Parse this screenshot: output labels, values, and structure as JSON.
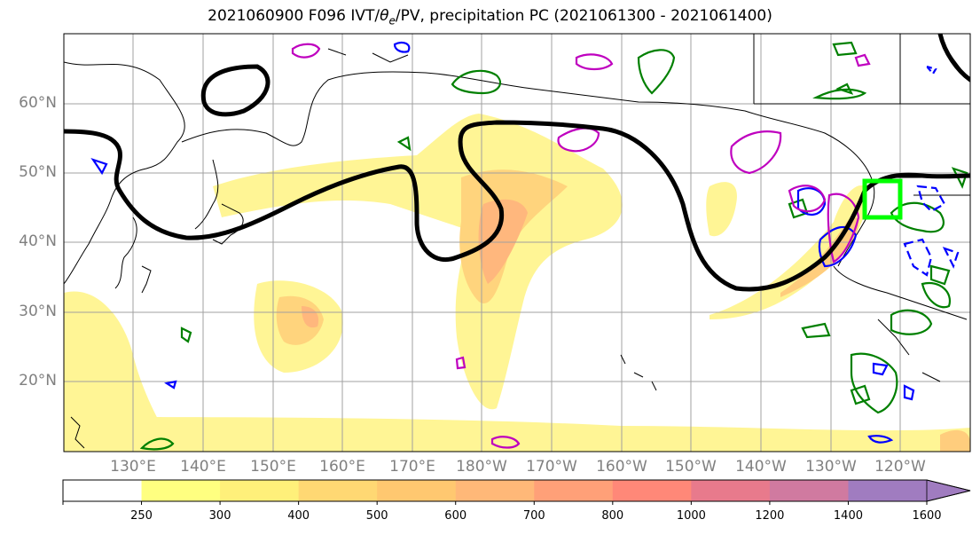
{
  "title": {
    "prefix": "2021060900 F096 IVT/",
    "theta": "θ",
    "theta_sub": "e",
    "suffix": "/PV, precipitation PC (2021061300 - 2021061400)"
  },
  "map": {
    "lat_labels": [
      "60°N",
      "50°N",
      "40°N",
      "30°N",
      "20°N"
    ],
    "lon_labels": [
      "130°E",
      "140°E",
      "150°E",
      "160°E",
      "170°E",
      "180°W",
      "170°W",
      "160°W",
      "150°W",
      "140°W",
      "130°W",
      "120°W"
    ],
    "lat_range": [
      10,
      70
    ],
    "lon_range": [
      120,
      250
    ],
    "gridlines": true,
    "highlight_box": {
      "lon": [
        -125,
        -120
      ],
      "lat": [
        43,
        49
      ],
      "color": "#00ff00"
    },
    "colors": {
      "pv_contour": "#000000",
      "precip_positive": "#008000",
      "precip_negative": "#0000ff",
      "theta_e_anomaly": "#bf00bf",
      "coastline": "#000000"
    }
  },
  "colorbar": {
    "levels": [
      "250",
      "300",
      "400",
      "500",
      "600",
      "700",
      "800",
      "1000",
      "1200",
      "1400",
      "1600"
    ],
    "colors": [
      "#ffffff",
      "#ffff80",
      "#fff07a",
      "#ffd873",
      "#ffc870",
      "#ffb878",
      "#ffa078",
      "#ff8878",
      "#e87a8c",
      "#d07aa0",
      "#a07cc0"
    ],
    "extend": "max"
  }
}
